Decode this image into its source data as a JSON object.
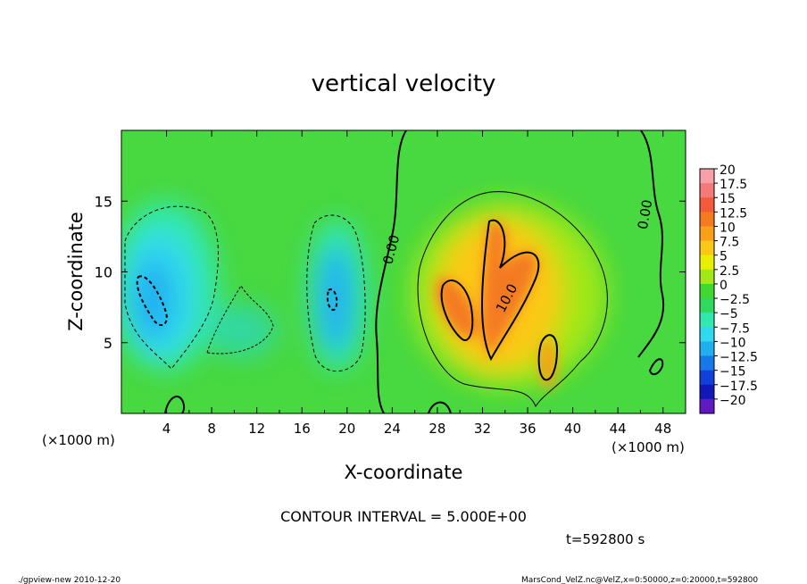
{
  "chart_data": {
    "type": "heatmap",
    "title": "vertical velocity",
    "xlabel": "X-coordinate",
    "ylabel": "Z-coordinate",
    "x_unit": "(×1000 m)",
    "y_unit": "(×1000 m)",
    "xlim": [
      0,
      50
    ],
    "ylim": [
      0,
      20
    ],
    "x_ticks": [
      4,
      8,
      12,
      16,
      20,
      24,
      28,
      32,
      36,
      40,
      44,
      48
    ],
    "y_ticks": [
      5,
      10,
      15
    ],
    "colorbar": {
      "levels": [
        20,
        17.5,
        15,
        12.5,
        10,
        7.5,
        5,
        2.5,
        0,
        -2.5,
        -5,
        -7.5,
        -10,
        -12.5,
        -15,
        -17.5,
        -20
      ],
      "labels": [
        "20",
        "17.5",
        "15",
        "12.5",
        "10",
        "7.5",
        "5",
        "2.5",
        "0",
        "−2.5",
        "−5",
        "−7.5",
        "−10",
        "−12.5",
        "−15",
        "−17.5",
        "−20"
      ],
      "colors": [
        "#f8a0a8",
        "#f47a7a",
        "#f25a3a",
        "#f47a20",
        "#f8a018",
        "#fcc818",
        "#e8f000",
        "#a0e818",
        "#40d830",
        "#30d860",
        "#30e8b0",
        "#30d8f0",
        "#20b0f0",
        "#1878e8",
        "#1040d8",
        "#1018b8",
        "#6018c0"
      ]
    },
    "contour_labels": [
      {
        "x": 24.3,
        "z": 11.5,
        "text": "0.00"
      },
      {
        "x": 46.8,
        "z": 14.0,
        "text": "0.00"
      },
      {
        "x": 34.5,
        "z": 8.0,
        "text": "10.0"
      }
    ],
    "features": [
      {
        "kind": "updraft",
        "x": 34.5,
        "z": 8.0,
        "peak": 12.0
      },
      {
        "kind": "updraft",
        "x": 29.5,
        "z": 8.0,
        "peak": 10.0
      },
      {
        "kind": "updraft",
        "x": 38.0,
        "z": 4.0,
        "peak": 9.0
      },
      {
        "kind": "downdraft",
        "x": 2.5,
        "z": 8.0,
        "peak": -7.5
      },
      {
        "kind": "downdraft",
        "x": 18.5,
        "z": 7.5,
        "peak": -7.0
      },
      {
        "kind": "downdraft",
        "x": 12.0,
        "z": 6.0,
        "peak": -2.5
      }
    ],
    "grid": false,
    "legend": "right"
  },
  "contour_interval": "CONTOUR INTERVAL = 5.000E+00",
  "time_label": "t=592800 s",
  "footer_left": "./gpview-new   2010-12-20",
  "footer_right": "MarsCond_VelZ.nc@VelZ,x=0:50000,z=0:20000,t=592800"
}
